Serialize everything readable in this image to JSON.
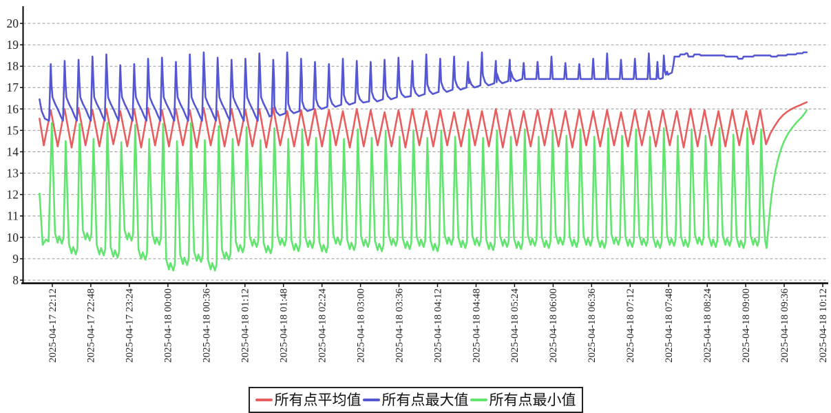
{
  "chart_data": {
    "type": "line",
    "title": "",
    "grid": "horizontal-dashed",
    "legend_position": "bottom-center",
    "time_origin": "2025-04-17 22:00",
    "minutes_span": 717,
    "cycle_period_minutes": 13,
    "x_axis": {
      "tick_interval_minutes": 36,
      "first_tick_offset_minutes": 12,
      "tick_labels": [
        "2025-04-17 22:12",
        "2025-04-17 22:48",
        "2025-04-17 23:24",
        "2025-04-18 00:00",
        "2025-04-18 00:36",
        "2025-04-18 01:12",
        "2025-04-18 01:48",
        "2025-04-18 02:24",
        "2025-04-18 03:00",
        "2025-04-18 03:36",
        "2025-04-18 04:12",
        "2025-04-18 04:48",
        "2025-04-18 05:24",
        "2025-04-18 06:00",
        "2025-04-18 06:36",
        "2025-04-18 07:12",
        "2025-04-18 07:48",
        "2025-04-18 08:24",
        "2025-04-18 09:00",
        "2025-04-18 09:36",
        "2025-04-18 10:12"
      ]
    },
    "y_axis": {
      "ticks": [
        8,
        9,
        10,
        11,
        12,
        13,
        14,
        15,
        16,
        17,
        18,
        19,
        20
      ],
      "min": 8,
      "max": 20.7
    },
    "colors": {
      "grid": "#999999",
      "axis": "#000000",
      "tick_text": "#333333"
    },
    "series": [
      {
        "name": "所有点平均值",
        "role": "average",
        "color": "#e85d5d",
        "start": [
          [
            0,
            15.55
          ]
        ],
        "trough_time_offset": 4,
        "peak_time_offset": 10.5,
        "peaks": [
          15.95,
          16.0,
          16.05,
          15.95,
          16.0,
          15.9,
          16.0,
          16.05,
          15.95,
          16.0,
          15.95,
          16.05,
          15.9,
          16.0,
          15.95,
          16.0,
          16.05,
          15.9,
          15.95,
          16.0,
          15.95,
          15.9,
          16.0,
          15.95,
          15.85,
          15.95,
          16.0,
          15.9,
          15.95,
          15.85,
          15.95,
          15.9,
          16.0,
          15.95,
          15.9,
          15.95,
          16.0,
          15.9,
          15.95,
          15.9,
          15.95,
          15.85,
          15.95,
          15.9,
          15.95,
          15.9,
          16.0,
          15.95,
          15.9,
          15.95,
          15.9,
          15.95
        ],
        "troughs": [
          14.3,
          14.25,
          14.2,
          14.3,
          14.25,
          14.35,
          14.25,
          14.2,
          14.3,
          14.25,
          14.3,
          14.2,
          14.3,
          14.25,
          14.3,
          14.25,
          14.2,
          14.3,
          14.25,
          14.3,
          14.25,
          14.3,
          14.2,
          14.25,
          14.3,
          14.25,
          14.2,
          14.3,
          14.25,
          14.3,
          14.25,
          14.3,
          14.25,
          14.2,
          14.3,
          14.25,
          14.3,
          14.25,
          14.2,
          14.3,
          14.25,
          14.3,
          14.25,
          14.3,
          14.25,
          14.3,
          14.2,
          14.25,
          14.3,
          14.25,
          14.3,
          14.35
        ],
        "tail": [
          [
            679,
            14.35
          ],
          [
            683,
            14.85
          ],
          [
            687,
            15.2
          ],
          [
            691,
            15.5
          ],
          [
            695,
            15.72
          ],
          [
            699,
            15.88
          ],
          [
            703,
            16.0
          ],
          [
            707,
            16.1
          ],
          [
            711,
            16.18
          ],
          [
            714,
            16.25
          ],
          [
            717,
            16.32
          ]
        ]
      },
      {
        "name": "所有点最大值",
        "role": "max",
        "color": "#5456d4",
        "start": [
          [
            0,
            16.45
          ],
          [
            2,
            15.9
          ],
          [
            5,
            15.55
          ]
        ],
        "spike_time_offset": 10.5,
        "pre_spike_dt": 1.5,
        "post_spike_drop": [
          0.8,
          1.0
        ],
        "decay_shape_early": [
          [
            1.6,
            1.1
          ],
          [
            4,
            0.8
          ],
          [
            7,
            0.5
          ],
          [
            9.5,
            0.2
          ]
        ],
        "decay_shape_late": [
          [
            1,
            0.45
          ],
          [
            3,
            0.15
          ],
          [
            6,
            0
          ]
        ],
        "late_shape_start_cycle": 16,
        "plateau_start_cycle": 34,
        "spike_tops": [
          18.1,
          18.25,
          18.3,
          18.45,
          18.55,
          18.05,
          18.1,
          18.35,
          18.4,
          18.2,
          18.55,
          18.65,
          18.4,
          18.3,
          18.35,
          18.6,
          18.3,
          18.65,
          18.35,
          18.2,
          18.1,
          18.35,
          18.25,
          18.2,
          18.3,
          18.4,
          18.25,
          18.55,
          18.35,
          18.45,
          18.2,
          18.65,
          18.25,
          18.3,
          18.15,
          18.2,
          18.45,
          18.15,
          18.1,
          18.35,
          18.6,
          18.3,
          18.35,
          18.6
        ],
        "baselines": [
          15.45,
          15.45,
          15.45,
          15.45,
          15.45,
          15.45,
          15.45,
          15.45,
          15.45,
          15.45,
          15.45,
          15.45,
          15.45,
          15.45,
          15.45,
          15.45,
          15.7,
          15.8,
          15.9,
          16.0,
          16.1,
          16.2,
          16.3,
          16.35,
          16.45,
          16.55,
          16.6,
          16.7,
          16.8,
          16.9,
          17.0,
          17.1,
          17.2,
          17.3,
          17.4,
          17.4,
          17.4,
          17.4,
          17.4,
          17.4,
          17.4,
          17.4,
          17.4,
          17.4
        ],
        "tail": [
          [
            571,
            17.4
          ],
          [
            576.5,
            17.4
          ],
          [
            577.5,
            18.2
          ],
          [
            578.5,
            17.45
          ],
          [
            580,
            17.4
          ],
          [
            582.5,
            17.45
          ],
          [
            583.5,
            18.5
          ],
          [
            584.5,
            17.75
          ],
          [
            585.5,
            17.6
          ],
          [
            586.5,
            17.75
          ],
          [
            587.5,
            17.6
          ],
          [
            589,
            17.65
          ],
          [
            591,
            17.7
          ],
          [
            592.5,
            18.1
          ],
          [
            593.5,
            18.45
          ],
          [
            598,
            18.45
          ],
          [
            599,
            18.55
          ],
          [
            603,
            18.55
          ],
          [
            604,
            18.6
          ],
          [
            605.5,
            18.6
          ],
          [
            606.5,
            18.45
          ],
          [
            611,
            18.45
          ],
          [
            612,
            18.55
          ],
          [
            617,
            18.55
          ],
          [
            618,
            18.5
          ],
          [
            640,
            18.5
          ],
          [
            641,
            18.45
          ],
          [
            652,
            18.45
          ],
          [
            653,
            18.35
          ],
          [
            657,
            18.35
          ],
          [
            658,
            18.45
          ],
          [
            667,
            18.45
          ],
          [
            668,
            18.5
          ],
          [
            683,
            18.5
          ],
          [
            684,
            18.45
          ],
          [
            689,
            18.45
          ],
          [
            690,
            18.5
          ],
          [
            698,
            18.5
          ],
          [
            699,
            18.55
          ],
          [
            707,
            18.55
          ],
          [
            708,
            18.6
          ],
          [
            713,
            18.6
          ],
          [
            714,
            18.65
          ],
          [
            717,
            18.65
          ]
        ]
      },
      {
        "name": "所有点最小值",
        "role": "min",
        "color": "#61e56e",
        "start": [
          [
            0,
            12.05
          ],
          [
            3,
            9.65
          ],
          [
            6,
            9.9
          ],
          [
            8.5,
            9.8
          ]
        ],
        "peak_time_offset": 11.5,
        "dip_shape": [
          [
            3,
            0.5
          ],
          [
            5.5,
            0.05
          ],
          [
            7,
            0.35
          ],
          [
            9.5,
            0
          ],
          [
            11,
            0.3
          ]
        ],
        "peaks": [
          15.35,
          14.5,
          15.3,
          14.6,
          15.35,
          14.45,
          15.25,
          14.6,
          15.3,
          14.5,
          15.35,
          14.55,
          15.2,
          14.6,
          15.15,
          14.55,
          15.1,
          14.6,
          15.05,
          14.65,
          15.0,
          14.6,
          15.05,
          14.65,
          14.95,
          14.7,
          15.0,
          14.65,
          15.0,
          14.7,
          15.05,
          14.65,
          15.0,
          14.7,
          15.05,
          14.7,
          15.0,
          14.75,
          15.05,
          14.7,
          15.1,
          14.75,
          15.05,
          14.7,
          15.1,
          14.75,
          15.05,
          14.75,
          15.1,
          14.8,
          15.1,
          15.05
        ],
        "bottoms": [
          9.7,
          9.2,
          9.85,
          9.15,
          9.05,
          9.85,
          8.95,
          9.65,
          8.45,
          8.7,
          8.85,
          8.45,
          8.95,
          9.3,
          9.55,
          9.25,
          9.6,
          9.35,
          9.5,
          9.3,
          9.65,
          9.4,
          9.55,
          9.35,
          9.6,
          9.45,
          9.55,
          9.35,
          9.65,
          9.5,
          9.6,
          9.4,
          9.55,
          9.45,
          9.6,
          9.5,
          9.65,
          9.55,
          9.6,
          9.5,
          9.65,
          9.55,
          9.6,
          9.5,
          9.6,
          9.55,
          9.65,
          9.55,
          9.6,
          9.5,
          9.6,
          9.55
        ],
        "tail": [
          [
            676.5,
            11.5
          ],
          [
            678,
            9.9
          ],
          [
            679.5,
            9.5
          ],
          [
            682,
            10.9
          ],
          [
            684,
            11.9
          ],
          [
            686,
            12.6
          ],
          [
            688,
            13.15
          ],
          [
            690,
            13.6
          ],
          [
            692,
            13.95
          ],
          [
            694,
            14.25
          ],
          [
            696,
            14.5
          ],
          [
            698,
            14.7
          ],
          [
            700,
            14.88
          ],
          [
            702,
            15.03
          ],
          [
            704,
            15.16
          ],
          [
            706,
            15.28
          ],
          [
            708,
            15.4
          ],
          [
            710,
            15.5
          ],
          [
            712,
            15.6
          ],
          [
            714,
            15.72
          ],
          [
            715.5,
            15.82
          ],
          [
            717,
            15.95
          ]
        ]
      }
    ]
  },
  "legend": {
    "items": [
      {
        "label": "所有点平均值"
      },
      {
        "label": "所有点最大值"
      },
      {
        "label": "所有点最小值"
      }
    ]
  }
}
